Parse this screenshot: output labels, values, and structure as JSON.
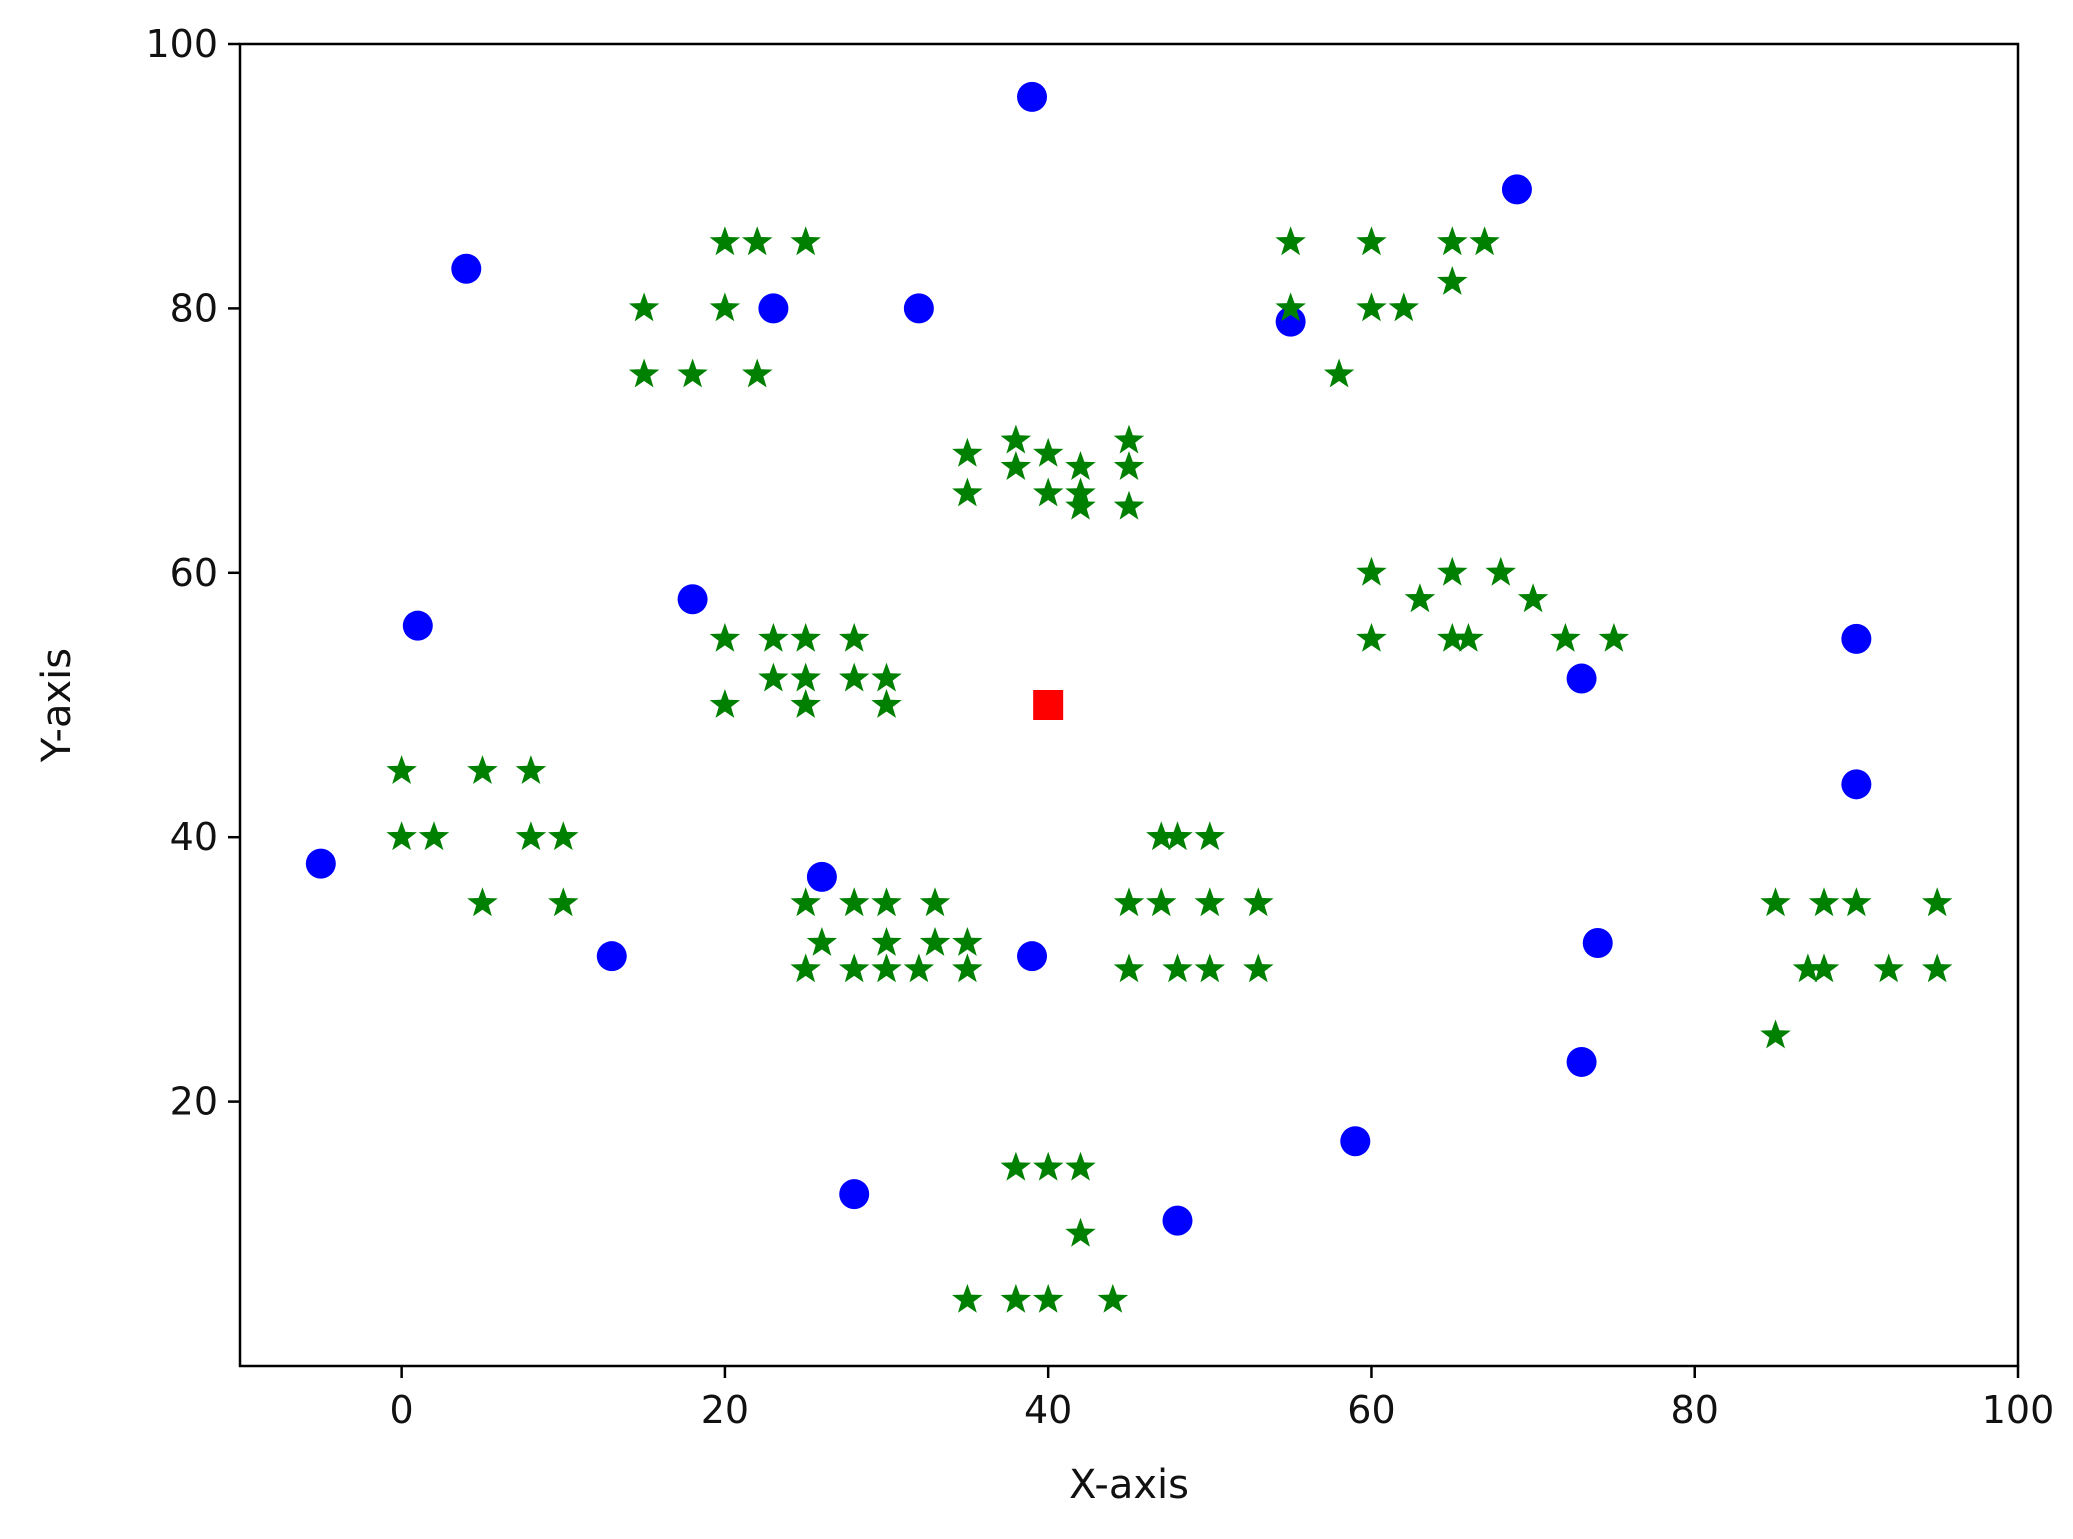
{
  "chart_data": {
    "type": "scatter",
    "title": "",
    "xlabel": "X-axis",
    "ylabel": "Y-axis",
    "xlim": [
      -10,
      100
    ],
    "ylim": [
      0,
      100
    ],
    "xticks": [
      0,
      20,
      40,
      60,
      80,
      100
    ],
    "yticks": [
      20,
      40,
      60,
      80,
      100
    ],
    "grid": false,
    "series": [
      {
        "marker": "circle",
        "color": "#0000ff",
        "points": [
          [
            39,
            96
          ],
          [
            69,
            89
          ],
          [
            4,
            83
          ],
          [
            23,
            80
          ],
          [
            32,
            80
          ],
          [
            55,
            79
          ],
          [
            18,
            58
          ],
          [
            1,
            56
          ],
          [
            90,
            55
          ],
          [
            73,
            52
          ],
          [
            90,
            44
          ],
          [
            -5,
            38
          ],
          [
            26,
            37
          ],
          [
            13,
            31
          ],
          [
            39,
            31
          ],
          [
            74,
            32
          ],
          [
            73,
            23
          ],
          [
            59,
            17
          ],
          [
            28,
            13
          ],
          [
            48,
            11
          ]
        ]
      },
      {
        "marker": "star",
        "color": "#008000",
        "points": [
          [
            20,
            85
          ],
          [
            22,
            85
          ],
          [
            25,
            85
          ],
          [
            15,
            80
          ],
          [
            20,
            80
          ],
          [
            15,
            75
          ],
          [
            18,
            75
          ],
          [
            22,
            75
          ],
          [
            55,
            85
          ],
          [
            60,
            85
          ],
          [
            65,
            85
          ],
          [
            67,
            85
          ],
          [
            65,
            82
          ],
          [
            55,
            80
          ],
          [
            60,
            80
          ],
          [
            62,
            80
          ],
          [
            58,
            75
          ],
          [
            38,
            70
          ],
          [
            45,
            70
          ],
          [
            35,
            69
          ],
          [
            40,
            69
          ],
          [
            38,
            68
          ],
          [
            42,
            68
          ],
          [
            45,
            68
          ],
          [
            35,
            66
          ],
          [
            40,
            66
          ],
          [
            42,
            66
          ],
          [
            42,
            65
          ],
          [
            45,
            65
          ],
          [
            60,
            60
          ],
          [
            65,
            60
          ],
          [
            68,
            60
          ],
          [
            63,
            58
          ],
          [
            70,
            58
          ],
          [
            60,
            55
          ],
          [
            65,
            55
          ],
          [
            66,
            55
          ],
          [
            72,
            55
          ],
          [
            75,
            55
          ],
          [
            20,
            55
          ],
          [
            23,
            55
          ],
          [
            25,
            55
          ],
          [
            28,
            55
          ],
          [
            23,
            52
          ],
          [
            25,
            52
          ],
          [
            28,
            52
          ],
          [
            30,
            52
          ],
          [
            20,
            50
          ],
          [
            25,
            50
          ],
          [
            30,
            50
          ],
          [
            0,
            45
          ],
          [
            5,
            45
          ],
          [
            8,
            45
          ],
          [
            0,
            40
          ],
          [
            2,
            40
          ],
          [
            8,
            40
          ],
          [
            10,
            40
          ],
          [
            5,
            35
          ],
          [
            10,
            35
          ],
          [
            25,
            35
          ],
          [
            28,
            35
          ],
          [
            30,
            35
          ],
          [
            33,
            35
          ],
          [
            26,
            32
          ],
          [
            30,
            32
          ],
          [
            33,
            32
          ],
          [
            35,
            32
          ],
          [
            25,
            30
          ],
          [
            28,
            30
          ],
          [
            30,
            30
          ],
          [
            32,
            30
          ],
          [
            35,
            30
          ],
          [
            47,
            40
          ],
          [
            48,
            40
          ],
          [
            50,
            40
          ],
          [
            45,
            35
          ],
          [
            47,
            35
          ],
          [
            50,
            35
          ],
          [
            53,
            35
          ],
          [
            45,
            30
          ],
          [
            48,
            30
          ],
          [
            50,
            30
          ],
          [
            53,
            30
          ],
          [
            85,
            35
          ],
          [
            88,
            35
          ],
          [
            90,
            35
          ],
          [
            95,
            35
          ],
          [
            87,
            30
          ],
          [
            88,
            30
          ],
          [
            92,
            30
          ],
          [
            95,
            30
          ],
          [
            85,
            25
          ],
          [
            38,
            15
          ],
          [
            40,
            15
          ],
          [
            42,
            15
          ],
          [
            42,
            10
          ],
          [
            35,
            5
          ],
          [
            38,
            5
          ],
          [
            40,
            5
          ],
          [
            44,
            5
          ]
        ]
      },
      {
        "marker": "square",
        "color": "#ff0000",
        "points": [
          [
            40,
            50
          ]
        ]
      }
    ]
  }
}
